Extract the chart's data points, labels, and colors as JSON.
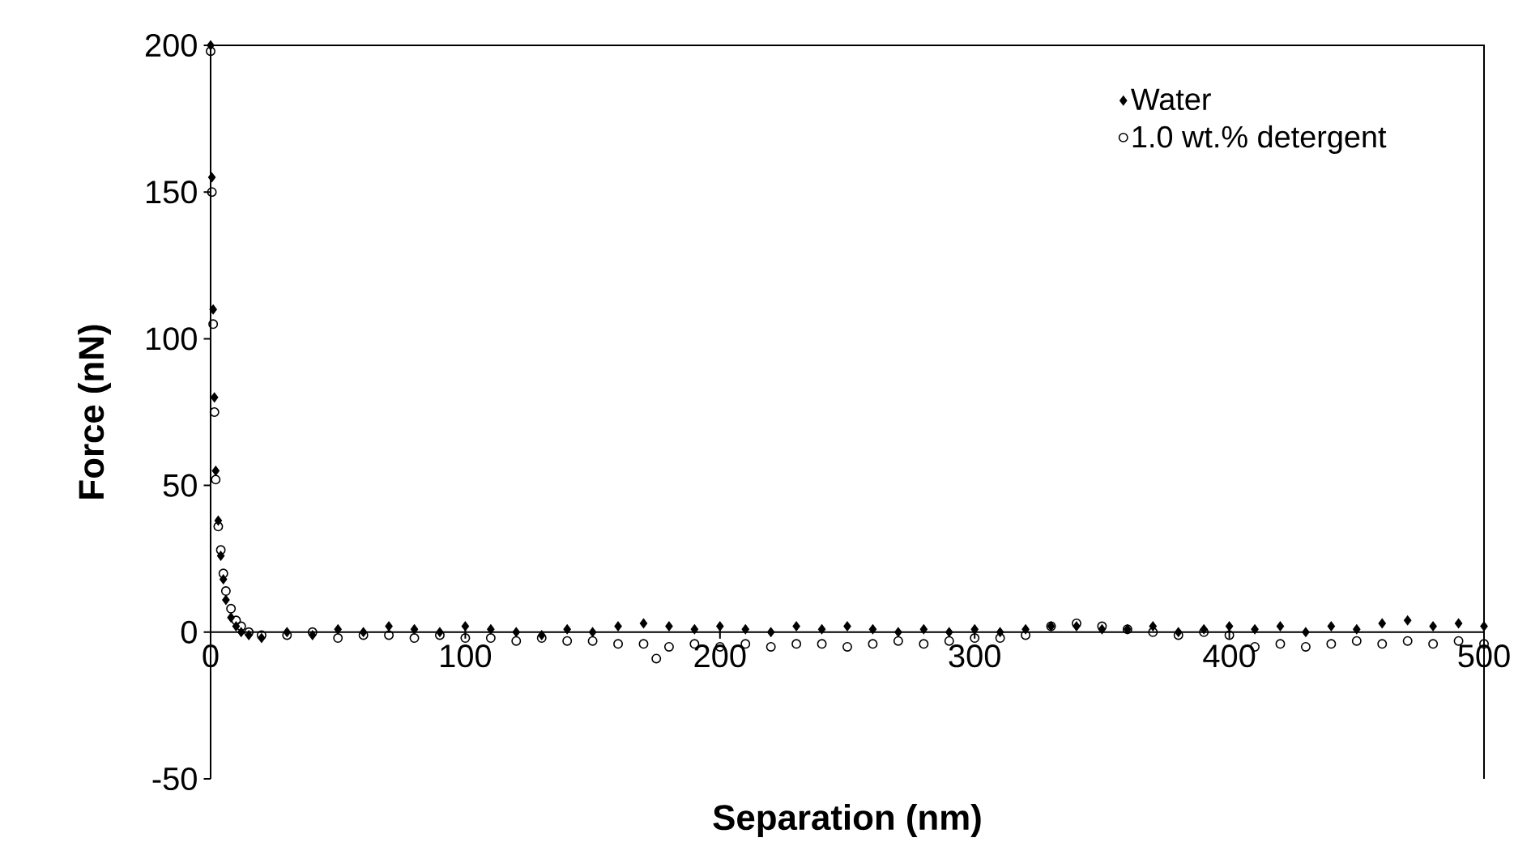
{
  "chart_data": {
    "type": "scatter",
    "xlabel": "Separation (nm)",
    "ylabel": "Force (nN)",
    "xlim": [
      0,
      500
    ],
    "ylim": [
      -50,
      200
    ],
    "xticks": [
      0,
      100,
      200,
      300,
      400,
      500
    ],
    "yticks": [
      -50,
      0,
      50,
      100,
      150,
      200
    ],
    "legend": "top right",
    "grid": false,
    "series": [
      {
        "name": "Water",
        "color": "#000000",
        "marker": "diamond",
        "x": [
          0,
          0.5,
          1,
          1.5,
          2,
          3,
          4,
          5,
          6,
          8,
          10,
          12,
          15,
          20,
          30,
          40,
          50,
          60,
          70,
          80,
          90,
          100,
          110,
          120,
          130,
          140,
          150,
          160,
          170,
          180,
          190,
          200,
          210,
          220,
          230,
          240,
          250,
          260,
          270,
          280,
          290,
          300,
          310,
          320,
          330,
          340,
          350,
          360,
          370,
          380,
          390,
          400,
          410,
          420,
          430,
          440,
          450,
          460,
          470,
          480,
          490,
          500
        ],
        "values": [
          200,
          155,
          110,
          80,
          55,
          38,
          26,
          18,
          11,
          5,
          2,
          0,
          -1,
          -2,
          0,
          -1,
          1,
          0,
          2,
          1,
          0,
          2,
          1,
          0,
          -1,
          1,
          0,
          2,
          3,
          2,
          1,
          2,
          1,
          0,
          2,
          1,
          2,
          1,
          0,
          1,
          0,
          1,
          0,
          1,
          2,
          2,
          1,
          1,
          2,
          0,
          1,
          2,
          1,
          2,
          0,
          2,
          1,
          3,
          4,
          2,
          3,
          2
        ]
      },
      {
        "name": "1.0 wt.% detergent",
        "color": "#000000",
        "marker": "circle",
        "x": [
          0,
          0.5,
          1,
          1.5,
          2,
          3,
          4,
          5,
          6,
          8,
          10,
          12,
          15,
          20,
          30,
          40,
          50,
          60,
          70,
          80,
          90,
          100,
          110,
          120,
          130,
          140,
          150,
          160,
          170,
          175,
          180,
          190,
          200,
          210,
          220,
          230,
          240,
          250,
          260,
          270,
          280,
          290,
          300,
          310,
          320,
          330,
          340,
          350,
          360,
          370,
          380,
          390,
          400,
          410,
          420,
          430,
          440,
          450,
          460,
          470,
          480,
          490,
          500
        ],
        "values": [
          198,
          150,
          105,
          75,
          52,
          36,
          28,
          20,
          14,
          8,
          4,
          2,
          0,
          -1,
          -1,
          0,
          -2,
          -1,
          -1,
          -2,
          -1,
          -2,
          -2,
          -3,
          -2,
          -3,
          -3,
          -4,
          -4,
          -9,
          -5,
          -4,
          -5,
          -4,
          -5,
          -4,
          -4,
          -5,
          -4,
          -3,
          -4,
          -3,
          -2,
          -2,
          -1,
          2,
          3,
          2,
          1,
          0,
          -1,
          0,
          -1,
          -5,
          -4,
          -5,
          -4,
          -3,
          -4,
          -3,
          -4,
          -3,
          -4
        ]
      }
    ]
  }
}
